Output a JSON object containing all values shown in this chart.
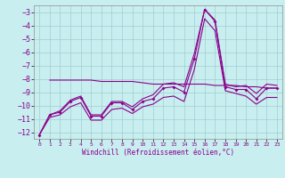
{
  "xlabel": "Windchill (Refroidissement éolien,°C)",
  "background_color": "#c8eef0",
  "line_color": "#8b008b",
  "grid_color": "#a0cece",
  "xlim": [
    -0.5,
    23.5
  ],
  "ylim": [
    -12.5,
    -2.5
  ],
  "yticks": [
    -12,
    -11,
    -10,
    -9,
    -8,
    -7,
    -6,
    -5,
    -4,
    -3
  ],
  "xticks": [
    0,
    1,
    2,
    3,
    4,
    5,
    6,
    7,
    8,
    9,
    10,
    11,
    12,
    13,
    14,
    15,
    16,
    17,
    18,
    19,
    20,
    21,
    22,
    23
  ],
  "line1_x": [
    0,
    1,
    2,
    3,
    4,
    5,
    6,
    7,
    8,
    9,
    10,
    11,
    12,
    13,
    14,
    15,
    16,
    17,
    18,
    19,
    20,
    21,
    22,
    23
  ],
  "line1_y": [
    -12.2,
    -10.7,
    -10.5,
    -9.7,
    -9.4,
    -10.8,
    -10.8,
    -9.8,
    -9.8,
    -10.3,
    -9.7,
    -9.5,
    -8.7,
    -8.6,
    -9.0,
    -6.5,
    -2.8,
    -3.7,
    -8.6,
    -8.8,
    -8.8,
    -9.5,
    -8.7,
    -8.7
  ],
  "line2_x": [
    0,
    1,
    2,
    3,
    4,
    5,
    6,
    7,
    8,
    9,
    10,
    11,
    12,
    13,
    14,
    15,
    16,
    17,
    18,
    19,
    20,
    21,
    22,
    23
  ],
  "line2_y": [
    -12.2,
    -10.7,
    -10.4,
    -9.6,
    -9.3,
    -10.7,
    -10.7,
    -9.7,
    -9.7,
    -10.1,
    -9.5,
    -9.2,
    -8.4,
    -8.3,
    -8.6,
    -6.1,
    -2.8,
    -3.6,
    -8.4,
    -8.6,
    -8.5,
    -9.1,
    -8.4,
    -8.5
  ],
  "line3_x": [
    1,
    2,
    3,
    4,
    5,
    6,
    7,
    8,
    9,
    10,
    11,
    12,
    13,
    14,
    15,
    16,
    17,
    18,
    19,
    20,
    21,
    22,
    23
  ],
  "line3_y": [
    -8.1,
    -8.1,
    -8.1,
    -8.1,
    -8.1,
    -8.2,
    -8.2,
    -8.2,
    -8.2,
    -8.3,
    -8.4,
    -8.4,
    -8.4,
    -8.4,
    -8.4,
    -8.4,
    -8.5,
    -8.5,
    -8.5,
    -8.6,
    -8.6,
    -8.7,
    -8.7
  ],
  "line4_x": [
    0,
    1,
    2,
    3,
    4,
    5,
    6,
    7,
    8,
    9,
    10,
    11,
    12,
    13,
    14,
    15,
    16,
    17,
    18,
    19,
    20,
    21,
    22,
    23
  ],
  "line4_y": [
    -12.2,
    -10.9,
    -10.7,
    -10.1,
    -9.8,
    -11.1,
    -11.1,
    -10.3,
    -10.2,
    -10.6,
    -10.1,
    -9.9,
    -9.4,
    -9.3,
    -9.7,
    -7.3,
    -3.5,
    -4.4,
    -8.9,
    -9.1,
    -9.3,
    -9.9,
    -9.4,
    -9.4
  ]
}
